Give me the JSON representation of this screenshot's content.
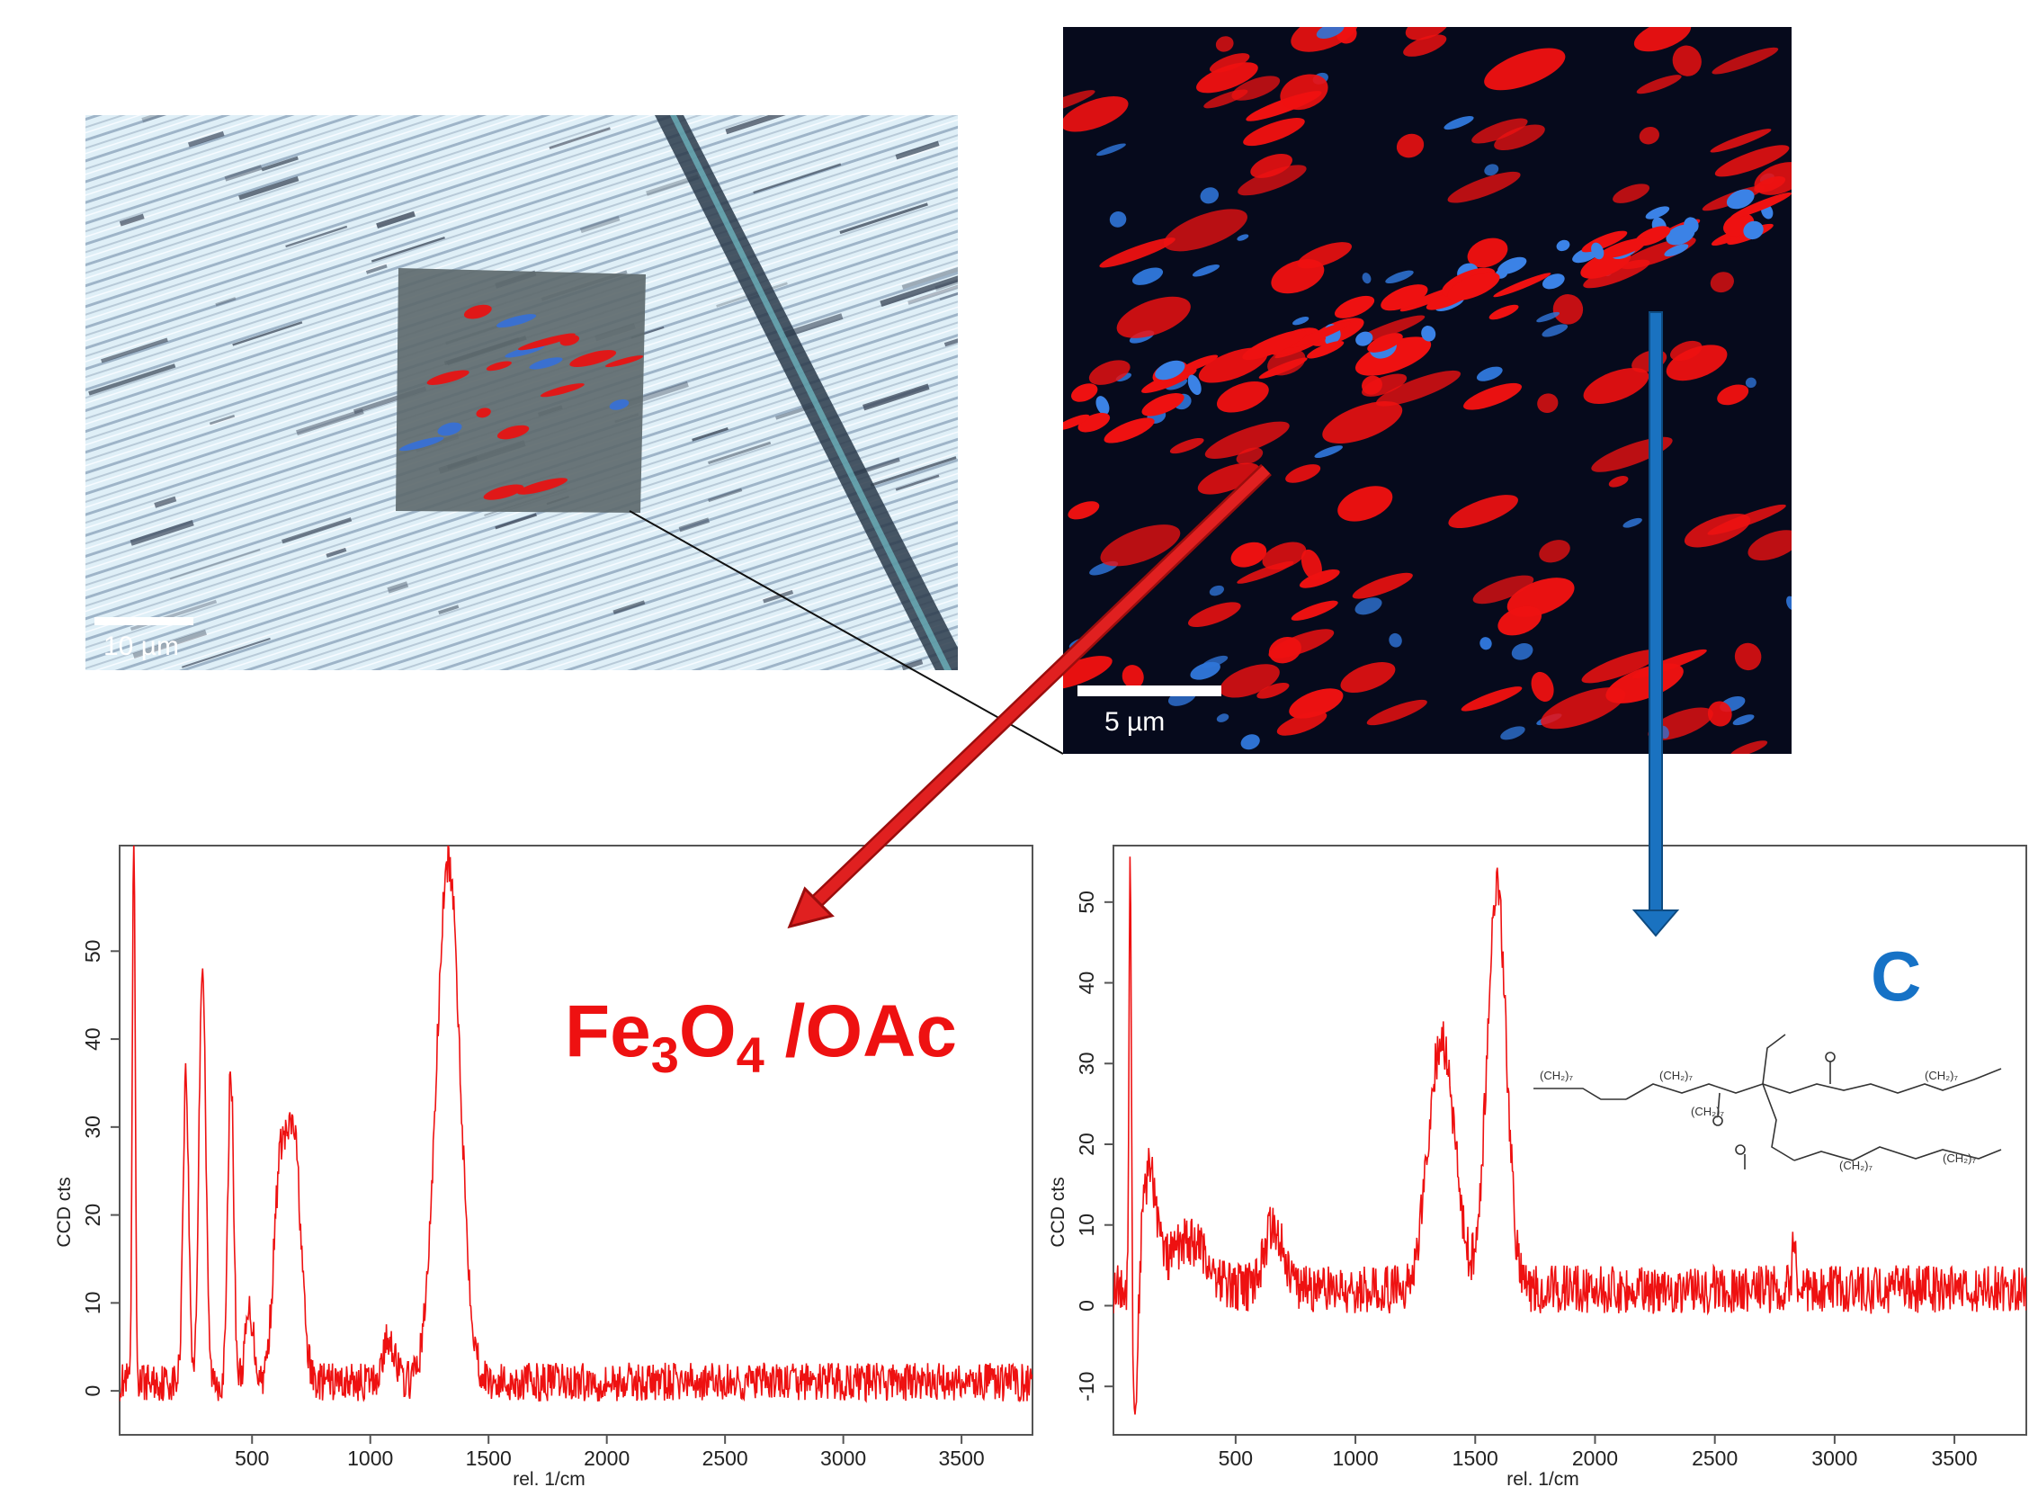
{
  "images": {
    "optical": {
      "scale_bar": "10 µm"
    },
    "raman_map": {
      "scale_bar": "5 µm"
    }
  },
  "labels": {
    "left_component": {
      "base1": "Fe",
      "sub1": "3",
      "base2": "O",
      "sub2": "4",
      "tail": " /OAc"
    },
    "right_component": "C"
  },
  "colors": {
    "map_red": "#ee1111",
    "map_blue": "#2f74d6",
    "spectrum_line": "#ee1111",
    "arrow_red": "#e02020",
    "arrow_blue": "#1a72c0"
  },
  "molecule": {
    "fragment_labels": [
      "(CH₂)₇",
      "(CH₂)₇",
      "(CH₂)₇",
      "(CH₂)₇",
      "(CH₂)₇",
      "(CH₂)₇"
    ]
  },
  "chart_data": [
    {
      "type": "line",
      "xlabel": "rel. 1/cm",
      "ylabel": "CCD cts",
      "xlim": [
        -60,
        3800
      ],
      "ylim": [
        -5,
        62
      ],
      "xticks": [
        500,
        1000,
        1500,
        2000,
        2500,
        3000,
        3500
      ],
      "yticks": [
        0,
        10,
        20,
        30,
        40,
        50
      ],
      "peaks": [
        {
          "x": 0,
          "y": 62,
          "w": 6
        },
        {
          "x": 220,
          "y": 35,
          "w": 12
        },
        {
          "x": 290,
          "y": 48,
          "w": 14
        },
        {
          "x": 410,
          "y": 36,
          "w": 12
        },
        {
          "x": 490,
          "y": 8,
          "w": 18
        },
        {
          "x": 620,
          "y": 24,
          "w": 28
        },
        {
          "x": 680,
          "y": 26,
          "w": 28
        },
        {
          "x": 1080,
          "y": 5,
          "w": 25
        },
        {
          "x": 1330,
          "y": 59,
          "w": 50
        }
      ],
      "baseline": 1,
      "noise": 2.2
    },
    {
      "type": "line",
      "xlabel": "rel. 1/cm",
      "ylabel": "CCD cts",
      "xlim": [
        -10,
        3800
      ],
      "ylim": [
        -16,
        57
      ],
      "xticks": [
        500,
        1000,
        1500,
        2000,
        2500,
        3000,
        3500
      ],
      "yticks": [
        -10,
        0,
        10,
        20,
        30,
        40,
        50
      ],
      "peaks": [
        {
          "x": 60,
          "y": 58,
          "w": 5
        },
        {
          "x": 80,
          "y": -17,
          "w": 12
        },
        {
          "x": 140,
          "y": 14,
          "w": 30
        },
        {
          "x": 300,
          "y": 6,
          "w": 80
        },
        {
          "x": 660,
          "y": 8,
          "w": 40
        },
        {
          "x": 1360,
          "y": 31,
          "w": 55
        },
        {
          "x": 1590,
          "y": 50,
          "w": 40
        },
        {
          "x": 2830,
          "y": 8,
          "w": 6
        }
      ],
      "baseline": 2,
      "noise": 3.0
    }
  ]
}
